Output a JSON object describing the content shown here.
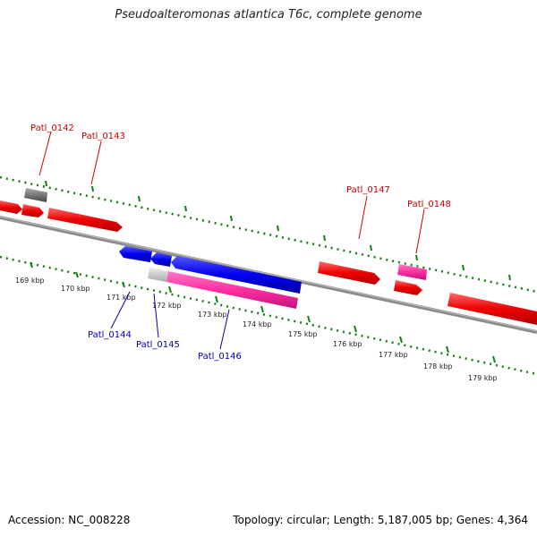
{
  "title": "Pseudoalteromonas atlantica T6c, complete genome",
  "footer": {
    "accession": "Accession: NC_008228",
    "summary": "Topology: circular; Length: 5,187,005 bp; Genes: 4,364"
  },
  "colors": {
    "forward_gene": "#ff0000",
    "reverse_gene": "#0000ff",
    "rna_pink": "#ff2fa0",
    "pseudo_gray": "#777777",
    "forward_label": "#cc0000",
    "reverse_label": "#0000aa",
    "tick": "#108010",
    "backbone": "#8a8a8a"
  },
  "ticks": [
    {
      "label": "169 kbp"
    },
    {
      "label": "170 kbp"
    },
    {
      "label": "171 kbp"
    },
    {
      "label": "172 kbp"
    },
    {
      "label": "173 kbp"
    },
    {
      "label": "174 kbp"
    },
    {
      "label": "175 kbp"
    },
    {
      "label": "176 kbp"
    },
    {
      "label": "177 kbp"
    },
    {
      "label": "178 kbp"
    },
    {
      "label": "179 kbp"
    }
  ],
  "gene_labels": [
    {
      "id": "Patl_0142",
      "strand": "forward"
    },
    {
      "id": "Patl_0143",
      "strand": "forward"
    },
    {
      "id": "Patl_0147",
      "strand": "forward"
    },
    {
      "id": "Patl_0148",
      "strand": "forward"
    },
    {
      "id": "Patl_0144",
      "strand": "reverse"
    },
    {
      "id": "Patl_0145",
      "strand": "reverse"
    },
    {
      "id": "Patl_0146",
      "strand": "reverse"
    }
  ]
}
